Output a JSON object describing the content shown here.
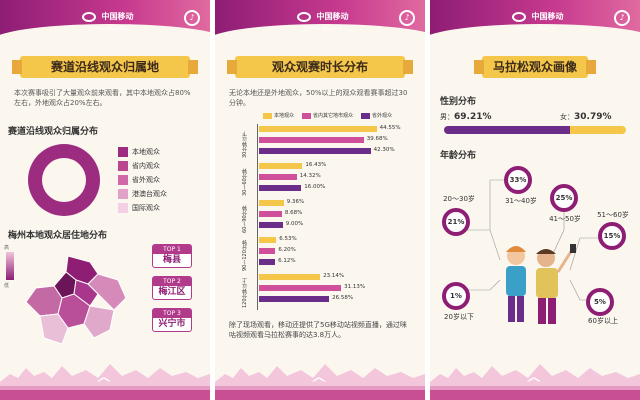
{
  "colors": {
    "magenta": "#9b2c80",
    "pink": "#cf4f9a",
    "yellow": "#f4c64a",
    "purple": "#6b2d8a",
    "light": "#eab9d4"
  },
  "brand": {
    "cn": "中国移动",
    "en": "China Mobile"
  },
  "panel1": {
    "banner": "赛道沿线观众归属地",
    "intro": "本次赛事吸引了大量观众前来观看，其中本地观众占80%左右，外地观众占20%左右。",
    "chart_title": "赛道沿线观众归属分布",
    "legend": [
      "本地观众",
      "省内观众",
      "省外观众",
      "港澳台观众",
      "国际观众"
    ],
    "map_title": "梅州本地观众居住地分布",
    "scale_high": "高",
    "scale_low": "低",
    "tops": [
      {
        "tag": "TOP 1",
        "name": "梅县"
      },
      {
        "tag": "TOP 2",
        "name": "梅江区"
      },
      {
        "tag": "TOP 3",
        "name": "兴宁市"
      }
    ]
  },
  "panel2": {
    "banner": "观众观赛时长分布",
    "intro": "无论本地还是外地观众，50%以上的观众观看赛事超过30分钟。",
    "footer": "除了现场观看，移动还提供了5G移动站视频直播，通过咪咕视频观看马拉松赛事的达3.8万人。"
  },
  "chart_data": {
    "type": "bar",
    "categories": [
      "30分钟以下",
      "30～60分钟",
      "60～90分钟",
      "90～120分钟",
      "120分钟以上"
    ],
    "series": [
      {
        "name": "本地观众",
        "values": [
          44.55,
          16.43,
          9.36,
          6.53,
          23.14
        ]
      },
      {
        "name": "省内其它地市观众",
        "values": [
          39.68,
          14.32,
          8.68,
          6.2,
          31.13
        ]
      },
      {
        "name": "省外观众",
        "values": [
          42.3,
          16.0,
          9.0,
          6.12,
          26.58
        ]
      }
    ],
    "value_labels": [
      [
        "44.55%",
        "39.68%",
        "42.30%"
      ],
      [
        "16.43%",
        "14.32%",
        "16.00%"
      ],
      [
        "9.36%",
        "8.68%",
        "9.00%"
      ],
      [
        "6.53%",
        "6.20%",
        "6.12%"
      ],
      [
        "23.14%",
        "31.13%",
        "26.58%"
      ]
    ],
    "xlim": [
      0,
      50
    ],
    "orientation": "horizontal"
  },
  "panel3": {
    "banner": "马拉松观众画像",
    "sex_title": "性别分布",
    "male_label": "男：",
    "male_value": "69.21%",
    "female_label": "女：",
    "female_value": "30.79%",
    "male_share": 69.21,
    "age_title": "年龄分布",
    "ages": [
      {
        "pct": "21%",
        "label": "20～30岁"
      },
      {
        "pct": "33%",
        "label": "31～40岁"
      },
      {
        "pct": "25%",
        "label": "41～50岁"
      },
      {
        "pct": "15%",
        "label": "51～60岁"
      },
      {
        "pct": "1%",
        "label": "20岁以下"
      },
      {
        "pct": "5%",
        "label": "60岁以上"
      }
    ]
  }
}
